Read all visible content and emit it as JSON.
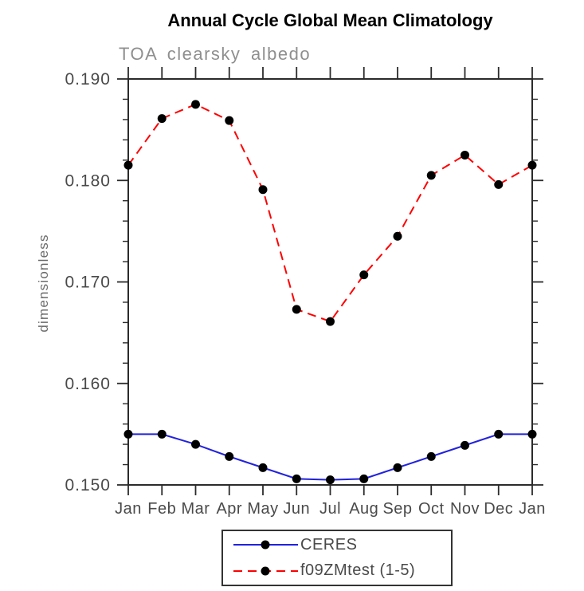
{
  "header": {
    "title": "Annual Cycle Global Mean Climatology",
    "subtitle": "TOA clearsky albedo"
  },
  "chart_data": {
    "type": "line",
    "title": "Annual Cycle Global Mean Climatology",
    "subtitle": "TOA clearsky albedo",
    "xlabel": "",
    "ylabel": "dimensionless",
    "categories": [
      "Jan",
      "Feb",
      "Mar",
      "Apr",
      "May",
      "Jun",
      "Jul",
      "Aug",
      "Sep",
      "Oct",
      "Nov",
      "Dec",
      "Jan"
    ],
    "ylim": [
      0.15,
      0.19
    ],
    "ytick_step": 0.01,
    "yminor_step": 0.002,
    "ytick_labels": [
      "0.150",
      "0.160",
      "0.170",
      "0.180",
      "0.190"
    ],
    "grid": false,
    "legend_position": "bottom-center",
    "series": [
      {
        "name": "CERES",
        "color": "#2222dd",
        "style": "solid",
        "marker": "circle",
        "marker_color": "#000000",
        "values": [
          0.155,
          0.155,
          0.154,
          0.1528,
          0.1517,
          0.1506,
          0.1505,
          0.1506,
          0.1517,
          0.1528,
          0.1539,
          0.155,
          0.155
        ]
      },
      {
        "name": "f09ZMtest (1-5)",
        "color": "#ff0000",
        "style": "dashed",
        "marker": "circle",
        "marker_color": "#000000",
        "values": [
          0.1815,
          0.1861,
          0.1875,
          0.1859,
          0.1791,
          0.1673,
          0.1661,
          0.1707,
          0.1745,
          0.1805,
          0.1825,
          0.1796,
          0.1815
        ]
      }
    ]
  },
  "colors": {
    "axis": "#2b2b2b",
    "tick_label": "#4a4a4a",
    "subtitle": "#8f8f8f",
    "ylabel": "#6b6b6b"
  }
}
